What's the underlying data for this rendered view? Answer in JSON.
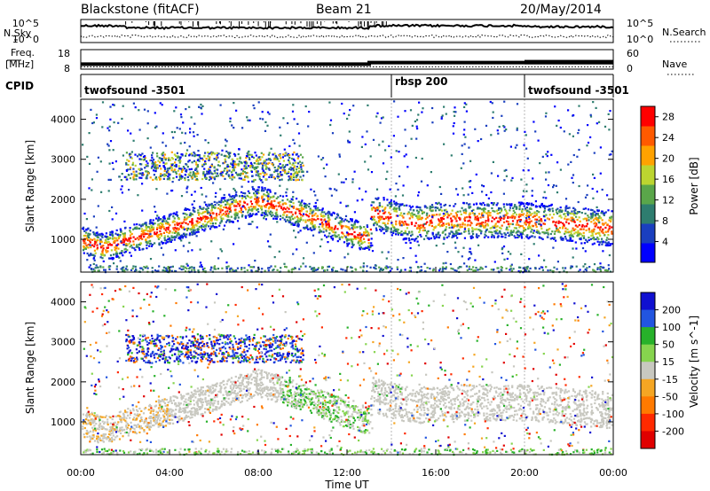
{
  "header": {
    "title": "Blackstone (fitACF)",
    "beam": "Beam 21",
    "date": "20/May/2014"
  },
  "noise_panel": {
    "left_label": "N.Sky",
    "right_label": "N.Search",
    "left_ticks": [
      "10^5",
      "10^0"
    ],
    "right_ticks": [
      "10^5",
      "10^0"
    ]
  },
  "freq_panel": {
    "left_label_1": "Freq.",
    "left_label_2": "[MHz]",
    "right_label": "Nave",
    "left_ticks": [
      "18",
      "8"
    ],
    "right_ticks": [
      "60",
      "0"
    ],
    "freq_switch_hour": 13.0,
    "freq_before_mhz": 10,
    "freq_after_mhz": 11
  },
  "cpid": {
    "label": "CPID",
    "segments": [
      {
        "name": "twofsound -3501",
        "start_hour": 0,
        "end_hour": 14
      },
      {
        "name": "rbsp 200",
        "start_hour": 14,
        "end_hour": 20
      },
      {
        "name": "twofsound -3501",
        "start_hour": 20,
        "end_hour": 24
      }
    ]
  },
  "colors": {
    "power": [
      "#0000ff",
      "#1a3fbf",
      "#2e7d6f",
      "#5aa64a",
      "#bcd530",
      "#ffa200",
      "#ff5a00",
      "#ff0000"
    ],
    "velocity": [
      "#1010d0",
      "#2255e0",
      "#27b12a",
      "#86d44e",
      "#c8c8c0",
      "#f5a623",
      "#ff7a00",
      "#ff2a00",
      "#e00000"
    ],
    "ground_scatter": "#c8c8c0"
  },
  "xaxis": {
    "label": "Time UT",
    "ticks": [
      "00:00",
      "04:00",
      "08:00",
      "12:00",
      "16:00",
      "20:00",
      "00:00"
    ]
  },
  "chart_data": [
    {
      "type": "heatmap",
      "panel": "power",
      "title": "",
      "xlabel": "",
      "ylabel": "Slant Range [km]",
      "xlim_hours": [
        0,
        24
      ],
      "ylim_km": [
        180,
        4500
      ],
      "y_ticks": [
        "1000",
        "2000",
        "3000",
        "4000"
      ],
      "colorbar": {
        "label": "Power [dB]",
        "ticks": [
          "4",
          "8",
          "12",
          "16",
          "20",
          "24",
          "28"
        ],
        "range": [
          0,
          30
        ]
      },
      "main_echo_band_km": [
        {
          "hour": 0,
          "range": 1000
        },
        {
          "hour": 1,
          "range": 800
        },
        {
          "hour": 2,
          "range": 1000
        },
        {
          "hour": 4,
          "range": 1300
        },
        {
          "hour": 6,
          "range": 1650
        },
        {
          "hour": 8,
          "range": 2000
        },
        {
          "hour": 10,
          "range": 1650
        },
        {
          "hour": 12,
          "range": 1200
        },
        {
          "hour": 13,
          "range": 1050
        },
        {
          "hour": 13.1,
          "range": 1700
        },
        {
          "hour": 15,
          "range": 1400
        },
        {
          "hour": 16,
          "range": 1500
        },
        {
          "hour": 20,
          "range": 1500
        },
        {
          "hour": 24,
          "range": 1300
        }
      ]
    },
    {
      "type": "heatmap",
      "panel": "velocity",
      "title": "",
      "xlabel": "Time UT",
      "ylabel": "Slant Range [km]",
      "xlim_hours": [
        0,
        24
      ],
      "ylim_km": [
        180,
        4500
      ],
      "y_ticks": [
        "1000",
        "2000",
        "3000",
        "4000"
      ],
      "colorbar": {
        "label": "Velocity [m s^-1]",
        "ticks": [
          "200",
          "100",
          "50",
          "15",
          "-15",
          "-50",
          "-100",
          "-200"
        ]
      }
    }
  ]
}
